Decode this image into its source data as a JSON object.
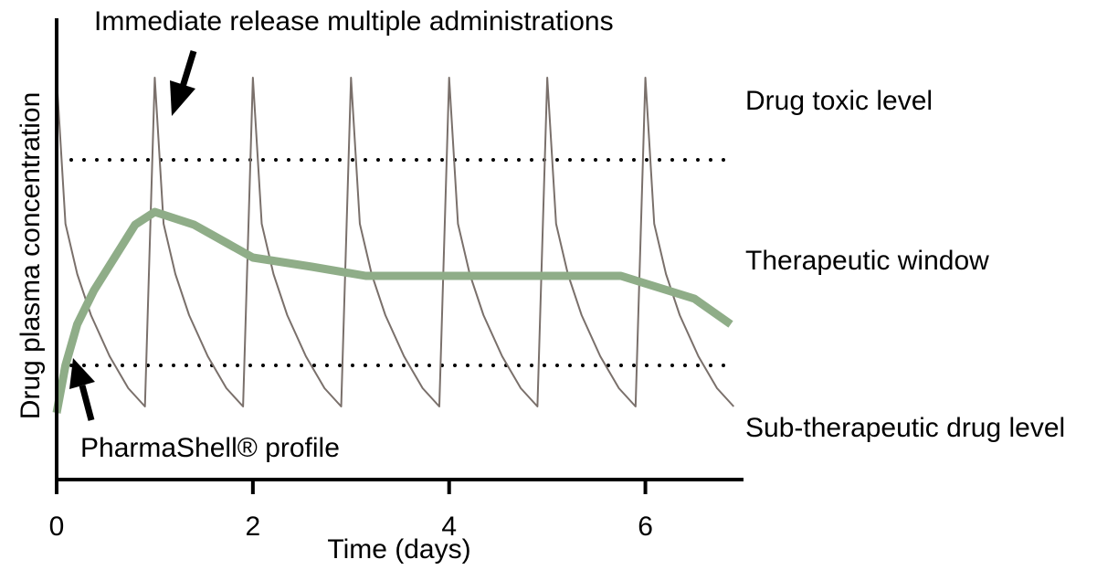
{
  "chart_data": {
    "type": "line",
    "x_label": "Time (days)",
    "y_label": "Drug plasma concentration",
    "xlim": [
      0,
      7
    ],
    "xticks": [
      0,
      2,
      4,
      6
    ],
    "ylim": [
      0,
      100
    ],
    "grid": false,
    "reference_lines": [
      70,
      25
    ],
    "annotations": [
      "Drug toxic level",
      "Therapeutic window",
      "Sub-therapeutic drug level"
    ],
    "series": [
      {
        "name": "Immediate release multiple administrations",
        "color": "#7a706b",
        "width": 2,
        "x": [
          0,
          0.09,
          0.21,
          0.35,
          0.54,
          0.73,
          0.9,
          1,
          1.09,
          1.21,
          1.35,
          1.54,
          1.73,
          1.9,
          2,
          2.09,
          2.21,
          2.35,
          2.54,
          2.73,
          2.9,
          3,
          3.09,
          3.21,
          3.35,
          3.54,
          3.73,
          3.9,
          4,
          4.09,
          4.21,
          4.35,
          4.54,
          4.73,
          4.9,
          5,
          5.09,
          5.21,
          5.35,
          5.54,
          5.73,
          5.9,
          6,
          6.09,
          6.21,
          6.35,
          6.54,
          6.73,
          6.9
        ],
        "values": [
          88,
          56,
          45,
          36,
          27,
          20,
          16,
          88,
          56,
          45,
          36,
          27,
          20,
          16,
          88,
          56,
          45,
          36,
          27,
          20,
          16,
          88,
          56,
          45,
          36,
          27,
          20,
          16,
          88,
          56,
          45,
          36,
          27,
          20,
          16,
          88,
          56,
          45,
          36,
          27,
          20,
          16,
          88,
          56,
          45,
          36,
          27,
          20,
          16
        ]
      },
      {
        "name": "PharmaShell® profile",
        "color": "#8fad88",
        "width": 9,
        "x": [
          0,
          0.09,
          0.21,
          0.38,
          0.8,
          1.0,
          1.4,
          2.0,
          2.6,
          3.15,
          5.75,
          6.5,
          6.87
        ],
        "values": [
          14.6,
          25,
          34,
          41.4,
          55.8,
          58.6,
          55.8,
          48.6,
          46.6,
          44.6,
          44.6,
          39.6,
          34
        ]
      }
    ]
  }
}
